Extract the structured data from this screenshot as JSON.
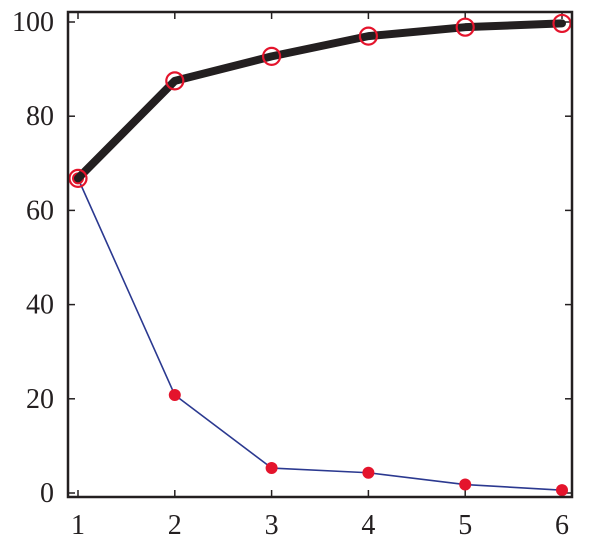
{
  "chart_data": {
    "type": "line",
    "title": "",
    "xlabel": "",
    "ylabel": "",
    "x": [
      1,
      2,
      3,
      4,
      5,
      6
    ],
    "xlim": [
      1,
      6
    ],
    "ylim": [
      0,
      100
    ],
    "x_ticks": [
      "1",
      "2",
      "3",
      "4",
      "5",
      "6"
    ],
    "y_ticks": [
      "0",
      "20",
      "40",
      "60",
      "80",
      "100"
    ],
    "grid": false,
    "legend": "none",
    "series": [
      {
        "values": [
          66.8,
          87.5,
          92.7,
          97.0,
          98.9,
          99.7
        ],
        "line_color": "#231f20",
        "marker": "open-circle",
        "marker_color": "#e4142c",
        "line_style": "thick"
      },
      {
        "values": [
          66.8,
          20.8,
          5.3,
          4.3,
          1.8,
          0.6
        ],
        "line_color": "#2b3990",
        "marker": "filled-circle",
        "marker_color": "#e4142c",
        "line_style": "thin"
      }
    ]
  }
}
